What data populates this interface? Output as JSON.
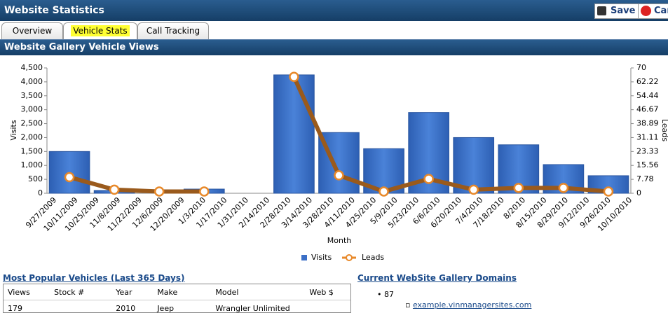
{
  "header": {
    "title": "Website Statistics",
    "save": "Save",
    "cancel": "Can"
  },
  "tabs": [
    "Overview",
    "Vehicle Stats",
    "Call Tracking"
  ],
  "section_title": "Website Gallery Vehicle Views",
  "chart_data": {
    "type": "bar",
    "x_label": "Month",
    "y_label": "Visits",
    "y2_label": "Leads",
    "x_axis_labels": [
      "9/27/2009",
      "10/11/2009",
      "10/25/2009",
      "11/8/2009",
      "11/22/2009",
      "12/6/2009",
      "12/20/2009",
      "1/3/2010",
      "1/17/2010",
      "1/31/2010",
      "2/14/2010",
      "2/28/2010",
      "3/14/2010",
      "3/28/2010",
      "4/11/2010",
      "4/25/2010",
      "5/9/2010",
      "5/23/2010",
      "6/6/2010",
      "6/20/2010",
      "7/4/2010",
      "7/18/2010",
      "8/2010",
      "8/15/2010",
      "8/29/2010",
      "9/12/2010",
      "9/26/2010",
      "10/10/2010"
    ],
    "categories": [
      null,
      null,
      null,
      null,
      null,
      null,
      null,
      null,
      null,
      null,
      null,
      null,
      null
    ],
    "series": [
      {
        "name": "Visits",
        "type": "bar",
        "color": "#3b6fc6",
        "values": [
          1500,
          100,
          0,
          150,
          null,
          4250,
          2180,
          1600,
          2900,
          2000,
          1740,
          1030,
          630
        ]
      },
      {
        "name": "Leads",
        "type": "line",
        "axis": "y2",
        "color": "#9a5a1c",
        "values": [
          9,
          2,
          1,
          1,
          null,
          65,
          10,
          1,
          8,
          2,
          3,
          3,
          1
        ]
      }
    ],
    "ylim": [
      0,
      4500
    ],
    "yticks": [
      0,
      500,
      {
        "value": 1000,
        "label": "1,000"
      },
      {
        "value": 1500,
        "label": "1,500"
      },
      {
        "value": 2000,
        "label": "2,000"
      },
      {
        "value": 2500,
        "label": "2,500"
      },
      {
        "value": 3000,
        "label": "3,000"
      },
      {
        "value": 3500,
        "label": "3,500"
      },
      {
        "value": 4000,
        "label": "4,000"
      },
      {
        "value": 4500,
        "label": "4,500"
      }
    ],
    "y2lim": [
      0,
      70
    ],
    "y2ticks": [
      0,
      7.78,
      15.56,
      23.33,
      31.11,
      38.89,
      46.67,
      54.44,
      62.22,
      70
    ]
  },
  "popular": {
    "title": "Most Popular Vehicles (Last 365 Days)",
    "columns": [
      "Views",
      "Stock #",
      "Year",
      "Make",
      "Model",
      "Web $"
    ],
    "rows": [
      [
        "179",
        "",
        "2010",
        "Jeep",
        "Wrangler Unlimited",
        ""
      ]
    ]
  },
  "domains": {
    "title": "Current WebSite Gallery Domains",
    "items": [
      {
        "label": "87",
        "links": [
          "example.vinmanagersites.com"
        ]
      }
    ]
  }
}
